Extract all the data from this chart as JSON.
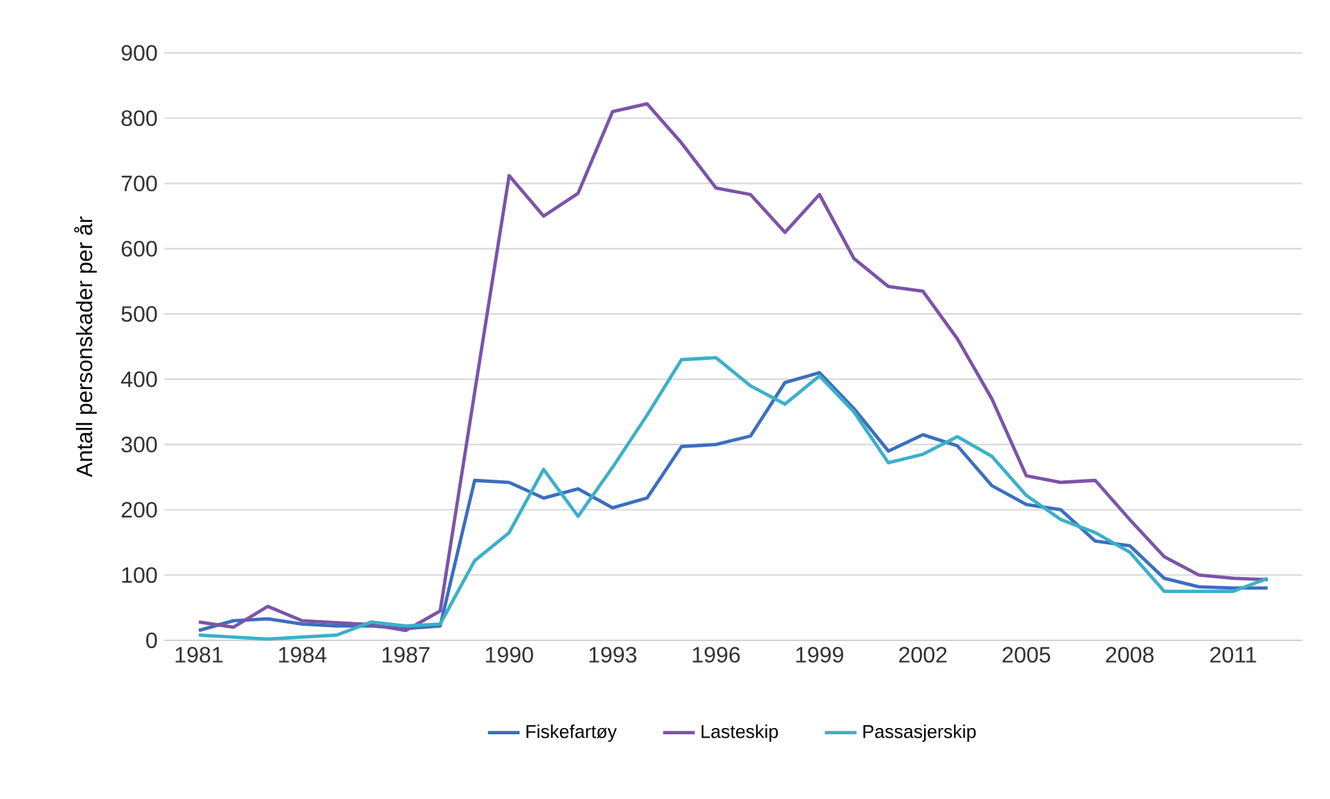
{
  "chart_data": {
    "type": "line",
    "ylabel": "Antall personskader per år",
    "x": [
      1981,
      1982,
      1983,
      1984,
      1985,
      1986,
      1987,
      1988,
      1989,
      1990,
      1991,
      1992,
      1993,
      1994,
      1995,
      1996,
      1997,
      1998,
      1999,
      2000,
      2001,
      2002,
      2003,
      2004,
      2005,
      2006,
      2007,
      2008,
      2009,
      2010,
      2011,
      2012
    ],
    "series": [
      {
        "name": "Fiskefartøy",
        "color": "#3a6fbf",
        "values": [
          15,
          30,
          33,
          25,
          22,
          22,
          18,
          22,
          245,
          242,
          218,
          232,
          203,
          218,
          297,
          300,
          313,
          395,
          410,
          355,
          290,
          315,
          298,
          237,
          208,
          200,
          152,
          145,
          95,
          82,
          80,
          80
        ]
      },
      {
        "name": "Lasteskip",
        "color": "#7b54a8",
        "values": [
          28,
          20,
          52,
          30,
          27,
          24,
          15,
          45,
          380,
          712,
          650,
          685,
          810,
          822,
          762,
          693,
          683,
          625,
          683,
          585,
          542,
          535,
          462,
          370,
          252,
          242,
          245,
          185,
          128,
          100,
          95,
          93
        ]
      },
      {
        "name": "Passasjerskip",
        "color": "#3bb0c9",
        "values": [
          8,
          5,
          2,
          5,
          8,
          28,
          22,
          25,
          122,
          165,
          262,
          190,
          265,
          345,
          430,
          433,
          390,
          362,
          405,
          350,
          272,
          285,
          312,
          282,
          222,
          185,
          165,
          135,
          75,
          75,
          75,
          95
        ]
      }
    ],
    "xlim": [
      1980,
      2013
    ],
    "xticks": [
      1981,
      1984,
      1987,
      1990,
      1993,
      1996,
      1999,
      2002,
      2005,
      2008,
      2011
    ],
    "ylim": [
      0,
      900
    ],
    "yticks": [
      0,
      100,
      200,
      300,
      400,
      500,
      600,
      700,
      800,
      900
    ],
    "grid": "y",
    "legend": "bottom",
    "marker": "none",
    "line_style": "solid"
  }
}
